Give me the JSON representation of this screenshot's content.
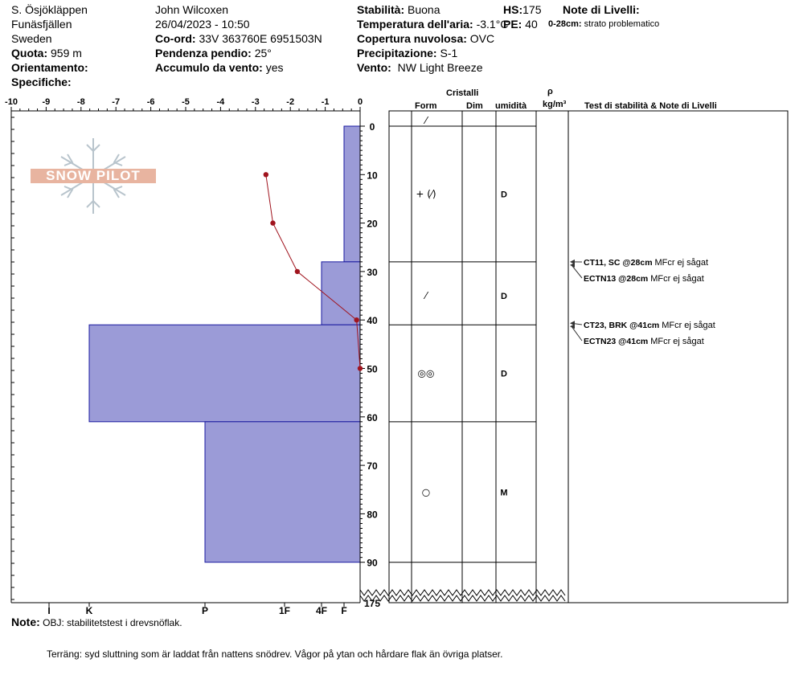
{
  "header": {
    "location": "S. Ösjökläppen",
    "region": "Funäsfjällen",
    "country": "Sweden",
    "observer": "John Wilcoxen",
    "datetime": "26/04/2023 - 10:50",
    "quota_label": "Quota:",
    "quota_value": "959 m",
    "orientamento_label": "Orientamento:",
    "specifiche_label": "Specifiche:",
    "coord_label": "Co-ord:",
    "coord_value": "33V 363760E 6951503N",
    "pendenza_label": "Pendenza pendio:",
    "pendenza_value": "25°",
    "accumulo_label": "Accumulo da vento:",
    "accumulo_value": "yes",
    "stabilita_label": "Stabilità:",
    "stabilita_value": "Buona",
    "temp_label": "Temperatura dell'aria:",
    "temp_value": "-3.1°C",
    "copertura_label": "Copertura nuvolosa:",
    "copertura_value": "OVC",
    "precip_label": "Precipitazione:",
    "precip_value": "S-1",
    "vento_label": "Vento:",
    "vento_value": "NW Light Breeze",
    "hs_label": "HS:",
    "hs_value": "175",
    "pe_label": "PE:",
    "pe_value": "40",
    "note_livelli_label": "Note di Livelli:",
    "note_livelli_range": "0-28cm:",
    "note_livelli_text": "strato problematico"
  },
  "watermark": "SNOW PILOT",
  "columns": {
    "cristalli": "Cristalli",
    "form": "Form",
    "dim": "Dim",
    "umidita": "umidità",
    "rho": "ρ",
    "rho_unit": "kg/m³",
    "test": "Test di stabilità & Note di Livelli"
  },
  "chart_data": {
    "type": "profile",
    "x_ticks": [
      "-10",
      "-9",
      "-8",
      "-7",
      "-6",
      "-5",
      "-4",
      "-3",
      "-2",
      "-1",
      "0"
    ],
    "hand_hardness_labels": [
      "I",
      "K",
      "P",
      "1F",
      "4F",
      "F"
    ],
    "y_ticks": [
      "0",
      "10",
      "20",
      "30",
      "40",
      "50",
      "60",
      "70",
      "80",
      "90"
    ],
    "y_break_label": "175",
    "hardness_layers": [
      {
        "top": 0,
        "bottom": 28,
        "hardness": "F"
      },
      {
        "top": 28,
        "bottom": 41,
        "hardness": "4F"
      },
      {
        "top": 41,
        "bottom": 61,
        "hardness": "K"
      },
      {
        "top": 61,
        "bottom": 90,
        "hardness": "P"
      }
    ],
    "temperature_profile": {
      "depth": [
        10,
        20,
        30,
        40,
        50
      ],
      "temp": [
        -2.7,
        -2.5,
        -1.8,
        -0.1,
        0.0
      ]
    },
    "layer_boundaries": [
      0,
      28,
      41,
      61,
      90
    ],
    "crystal_rows": [
      {
        "depth": 0,
        "form": "⁄",
        "moisture": ""
      },
      {
        "depth": 14,
        "form": "+ (⁄)",
        "moisture": "D"
      },
      {
        "depth": 35,
        "form": "⁄",
        "moisture": "D"
      },
      {
        "depth": 51,
        "form": "◎◎",
        "moisture": "D"
      },
      {
        "depth": 75.5,
        "form": "○",
        "moisture": "M"
      }
    ],
    "tests": [
      {
        "depth": 28,
        "code": "CT11, SC @28cm",
        "note": "MFcr ej sågat"
      },
      {
        "depth": 28,
        "code": "ECTN13 @28cm",
        "note": "MFcr ej sågat"
      },
      {
        "depth": 41,
        "code": "CT23, BRK @41cm",
        "note": "MFcr ej sågat"
      },
      {
        "depth": 41,
        "code": "ECTN23 @41cm",
        "note": "MFcr ej sågat"
      }
    ]
  },
  "footer": {
    "note_label": "Note:",
    "note_text": "OBJ: stabilitetstest i drevsnöflak.",
    "terrain_text": "Terräng: syd sluttning som är laddat från nattens snödrev. Vågor på ytan och hårdare flak än övriga platser."
  },
  "colors": {
    "hardness_fill": "#9b9bd7",
    "hardness_stroke": "#1a1aa0",
    "temp_line": "#a0141e",
    "watermark_bg": "#e8b4a0"
  }
}
